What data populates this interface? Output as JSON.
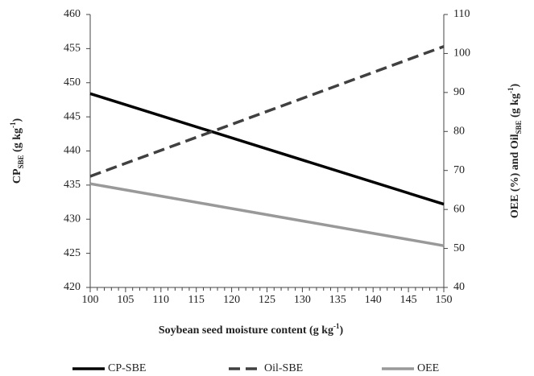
{
  "chart_data": {
    "type": "line",
    "xlabel": [
      "Soybean seed moisture content (g kg",
      "-1",
      ")"
    ],
    "ylabel": [
      "CP",
      "SBE",
      " (g kg",
      "-1",
      ")"
    ],
    "y2label": [
      "OEE (%) and Oil",
      "SBE",
      " (g kg",
      "-1",
      ")"
    ],
    "x": [
      100,
      150
    ],
    "xlim": [
      100,
      150
    ],
    "xticks": [
      100,
      105,
      110,
      115,
      120,
      125,
      130,
      135,
      140,
      145,
      150
    ],
    "ylim": [
      420,
      460
    ],
    "yticks": [
      420,
      425,
      430,
      435,
      440,
      445,
      450,
      455,
      460
    ],
    "y2lim": [
      40,
      110
    ],
    "y2ticks": [
      40,
      50,
      60,
      70,
      80,
      90,
      100,
      110
    ],
    "series": [
      {
        "name": "CP-SBE",
        "color": "#000000",
        "dash": false,
        "values": [
          448.4,
          432.2
        ]
      },
      {
        "name": "Oil-SBE",
        "color": "#404040",
        "dash": true,
        "axis": "y2",
        "values": [
          68.5,
          101.8
        ]
      },
      {
        "name": "OEE",
        "color": "#999999",
        "dash": false,
        "axis": "y2",
        "values": [
          66.6,
          50.7
        ]
      }
    ],
    "legend": "bottom"
  }
}
